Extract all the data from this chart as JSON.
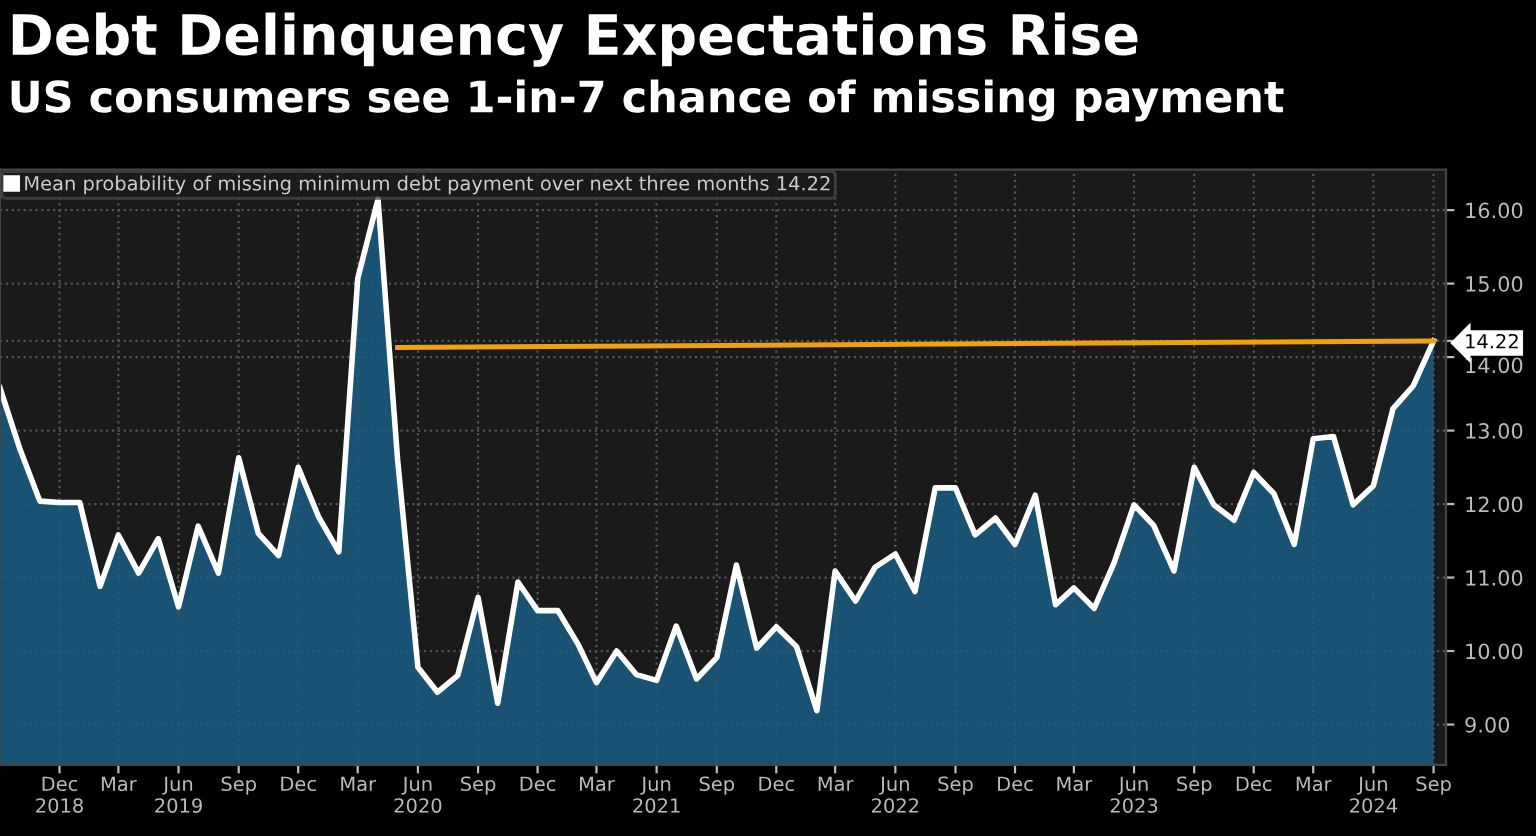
{
  "chart_data": {
    "type": "area",
    "title": "Debt Delinquency Expectations Rise",
    "subtitle": "US consumers see 1-in-7 chance of missing payment",
    "x": [
      "2018-09",
      "2018-10",
      "2018-11",
      "2018-12",
      "2019-01",
      "2019-02",
      "2019-03",
      "2019-04",
      "2019-05",
      "2019-06",
      "2019-07",
      "2019-08",
      "2019-09",
      "2019-10",
      "2019-11",
      "2019-12",
      "2020-01",
      "2020-02",
      "2020-03",
      "2020-04",
      "2020-05",
      "2020-06",
      "2020-07",
      "2020-08",
      "2020-09",
      "2020-10",
      "2020-11",
      "2020-12",
      "2021-01",
      "2021-02",
      "2021-03",
      "2021-04",
      "2021-05",
      "2021-06",
      "2021-07",
      "2021-08",
      "2021-09",
      "2021-10",
      "2021-11",
      "2021-12",
      "2022-01",
      "2022-02",
      "2022-03",
      "2022-04",
      "2022-05",
      "2022-06",
      "2022-07",
      "2022-08",
      "2022-09",
      "2022-10",
      "2022-11",
      "2022-12",
      "2023-01",
      "2023-02",
      "2023-03",
      "2023-04",
      "2023-05",
      "2023-06",
      "2023-07",
      "2023-08",
      "2023-09",
      "2023-10",
      "2023-11",
      "2023-12",
      "2024-01",
      "2024-02",
      "2024-03",
      "2024-04",
      "2024-05",
      "2024-06",
      "2024-07",
      "2024-08",
      "2024-09"
    ],
    "series": [
      {
        "name": "Mean probability of missing minimum debt payment over next three months 14.22",
        "color": "#1b5d85",
        "values": [
          13.58,
          12.76,
          12.04,
          12.02,
          12.02,
          10.88,
          11.58,
          11.06,
          11.53,
          10.6,
          11.7,
          11.06,
          12.63,
          11.6,
          11.3,
          12.5,
          11.83,
          11.35,
          15.07,
          16.15,
          12.6,
          9.78,
          9.44,
          9.67,
          10.73,
          9.29,
          10.94,
          10.55,
          10.55,
          10.09,
          9.57,
          10.0,
          9.68,
          9.6,
          10.34,
          9.62,
          9.91,
          11.17,
          10.04,
          10.33,
          10.06,
          9.19,
          11.09,
          10.68,
          11.14,
          11.32,
          10.81,
          12.22,
          12.22,
          11.58,
          11.81,
          11.45,
          12.12,
          10.63,
          10.86,
          10.58,
          11.19,
          11.99,
          11.71,
          11.09,
          12.5,
          11.99,
          11.78,
          12.43,
          12.14,
          11.45,
          12.89,
          12.92,
          11.99,
          12.25,
          13.3,
          13.61,
          14.22
        ]
      },
      {
        "type": "line",
        "color": "#f0a010",
        "x": [
          "2020-05",
          "2024-09"
        ],
        "values": [
          14.13,
          14.22
        ]
      }
    ],
    "xlim": [
      "2018-09-01",
      "2024-09-20"
    ],
    "xticks": [
      {
        "value": "2018-12",
        "label": "Dec\n2018"
      },
      {
        "value": "2019-03",
        "label": "Mar"
      },
      {
        "value": "2019-06",
        "label": "Jun\n2019"
      },
      {
        "value": "2019-09",
        "label": "Sep"
      },
      {
        "value": "2019-12",
        "label": "Dec"
      },
      {
        "value": "2020-03",
        "label": "Mar"
      },
      {
        "value": "2020-06",
        "label": "Jun\n2020"
      },
      {
        "value": "2020-09",
        "label": "Sep"
      },
      {
        "value": "2020-12",
        "label": "Dec"
      },
      {
        "value": "2021-03",
        "label": "Mar"
      },
      {
        "value": "2021-06",
        "label": "Jun\n2021"
      },
      {
        "value": "2021-09",
        "label": "Sep"
      },
      {
        "value": "2021-12",
        "label": "Dec"
      },
      {
        "value": "2022-03",
        "label": "Mar"
      },
      {
        "value": "2022-06",
        "label": "Jun\n2022"
      },
      {
        "value": "2022-09",
        "label": "Sep"
      },
      {
        "value": "2022-12",
        "label": "Dec"
      },
      {
        "value": "2023-03",
        "label": "Mar"
      },
      {
        "value": "2023-06",
        "label": "Jun\n2023"
      },
      {
        "value": "2023-09",
        "label": "Sep"
      },
      {
        "value": "2023-12",
        "label": "Dec"
      },
      {
        "value": "2024-03",
        "label": "Mar"
      },
      {
        "value": "2024-06",
        "label": "Jun\n2024"
      },
      {
        "value": "2024-09",
        "label": "Sep"
      }
    ],
    "ylim": [
      8.45,
      16.55
    ],
    "yticks": [
      {
        "value": 9,
        "label": "9.00"
      },
      {
        "value": 10,
        "label": "10.00"
      },
      {
        "value": 11,
        "label": "11.00"
      },
      {
        "value": 12,
        "label": "12.00"
      },
      {
        "value": 13,
        "label": "13.00"
      },
      {
        "value": 14,
        "label": "14.00"
      },
      {
        "value": 14.22,
        "label": "14.22"
      },
      {
        "value": 15,
        "label": "15.00"
      },
      {
        "value": 16,
        "label": "16.00"
      }
    ],
    "grid": true,
    "legend": "top left",
    "marker": "none",
    "line_style": "solid"
  }
}
